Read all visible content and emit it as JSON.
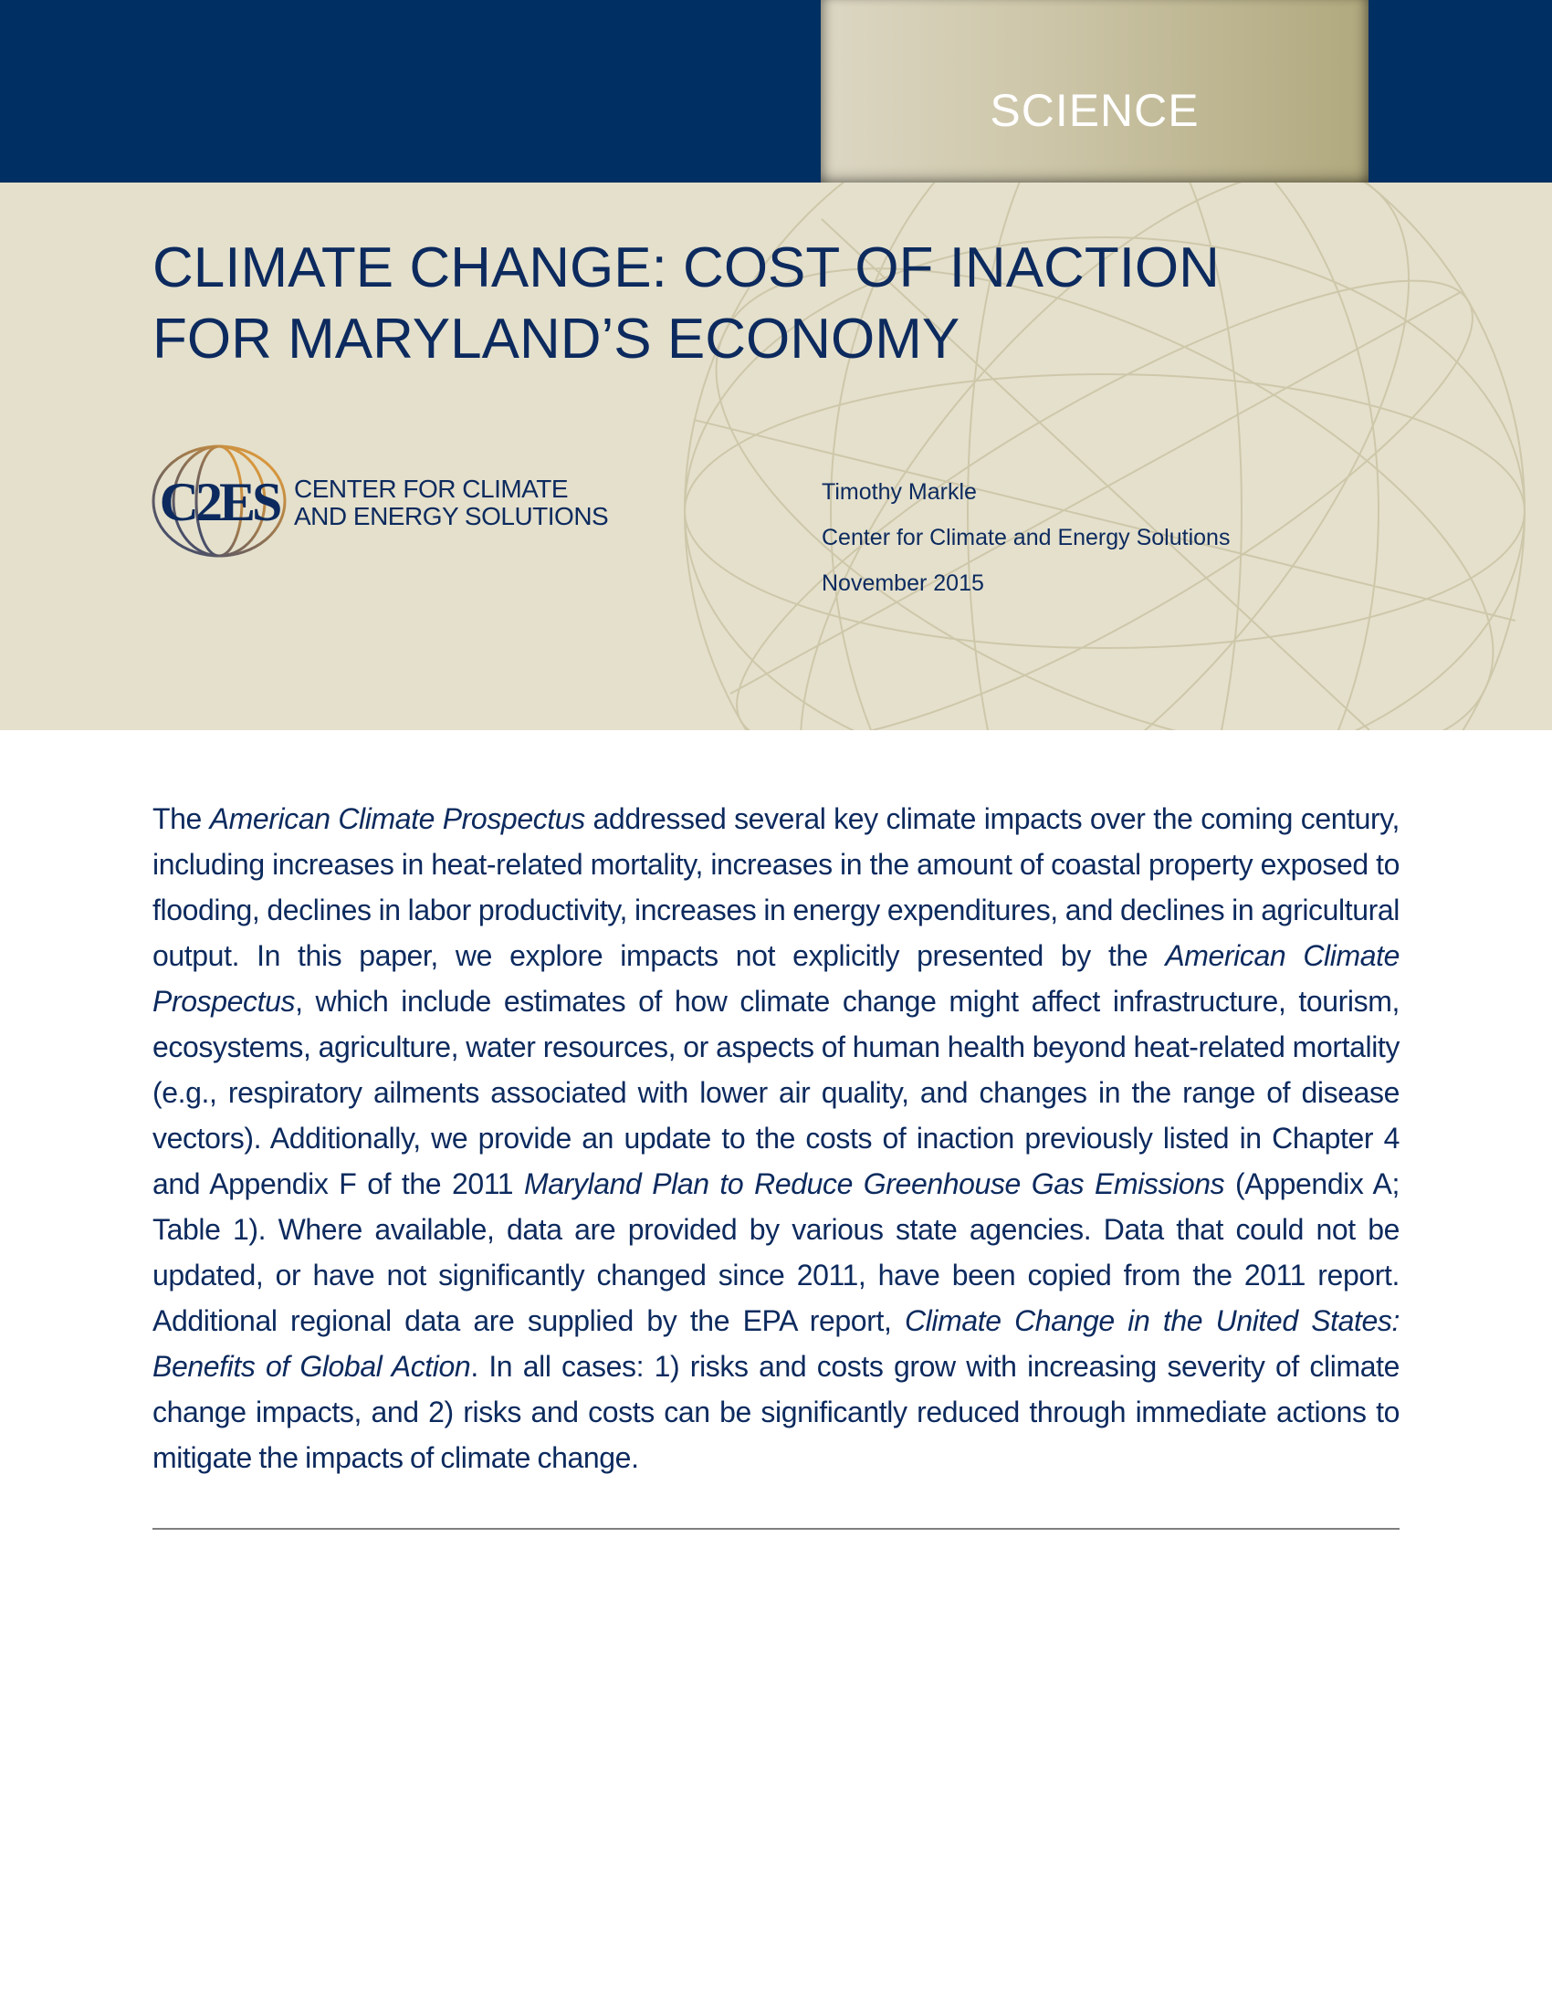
{
  "banner": {
    "section_label": "SCIENCE"
  },
  "title": {
    "line1": "CLIMATE CHANGE: COST OF INACTION",
    "line2": "FOR MARYLAND’S ECONOMY"
  },
  "logo": {
    "mark": "C2ES",
    "line1": "CENTER FOR CLIMATE",
    "line2": "AND ENERGY SOLUTIONS"
  },
  "meta": {
    "author": "Timothy Markle",
    "organization": "Center for Climate and Energy Solutions",
    "date": "November 2015"
  },
  "colors": {
    "navy": "#002f63",
    "beige": "#e4e0cc",
    "gold": "#b0a87d"
  },
  "body": {
    "segments": [
      {
        "text": "The ",
        "italic": false
      },
      {
        "text": "American Climate Prospectus",
        "italic": true
      },
      {
        "text": " addressed several key climate impacts over the coming century, including increases in heat-related mortality, increases in the amount of coastal property exposed to flooding, declines in labor productivity, increases in energy expenditures, and declines in agricultural output. In this paper, we explore impacts not explicitly presented by the ",
        "italic": false
      },
      {
        "text": "American Climate Prospectus",
        "italic": true
      },
      {
        "text": ", which include estimates of how climate change might affect infrastructure, tourism, ecosystems, agriculture, water resources, or aspects of human health beyond heat-related mortality (e.g., respiratory ailments associated with lower air quality, and changes in the range of disease vectors). Additionally, we provide an update to the costs of inaction previously listed in Chapter 4 and Appendix F of the 2011 ",
        "italic": false
      },
      {
        "text": "Maryland Plan to Reduce Greenhouse Gas Emissions",
        "italic": true
      },
      {
        "text": " (Appendix A; Table 1). Where available, data are provided by various state agencies. Data that could not be updated, or have not significantly changed since 2011, have been copied from the 2011 report. Additional regional data are supplied by the EPA report, ",
        "italic": false
      },
      {
        "text": "Climate Change in the United States: Benefits of Global Action",
        "italic": true
      },
      {
        "text": ". In all cases: 1) risks and costs grow with increasing severity of climate change impacts, and 2) risks and costs can be significantly reduced through immediate actions to mitigate the impacts of climate change.",
        "italic": false
      }
    ]
  }
}
